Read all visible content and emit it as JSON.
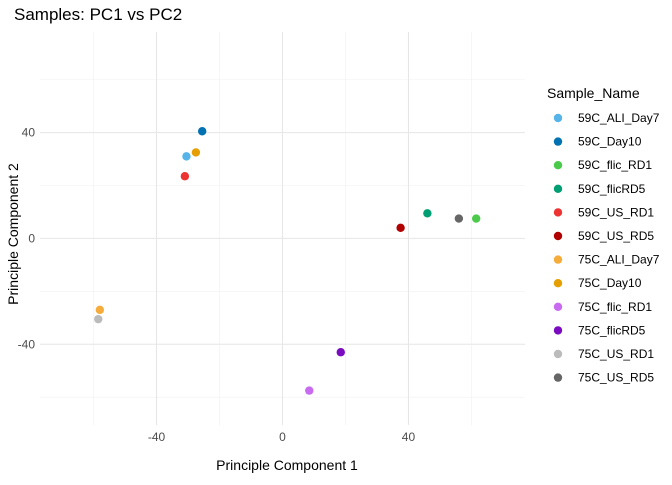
{
  "chart_data": {
    "type": "scatter",
    "title": "Samples: PC1 vs PC2",
    "xlabel": "Principle Component 1",
    "ylabel": "Principle Component 2",
    "xlim": [
      -77,
      77
    ],
    "ylim": [
      -70.5,
      78
    ],
    "x_ticks": [
      -40,
      0,
      40
    ],
    "y_ticks": [
      -40,
      0,
      40
    ],
    "grid": true,
    "legend": {
      "title": "Sample_Name",
      "placement": "right"
    },
    "series": [
      {
        "name": "59C_ALI_Day7",
        "color": "#56B4E9",
        "x": [
          -30.5
        ],
        "y": [
          31
        ]
      },
      {
        "name": "59C_Day10",
        "color": "#0072B2",
        "x": [
          -25.5
        ],
        "y": [
          40.5
        ]
      },
      {
        "name": "59C_flic_RD1",
        "color": "#4BC94B",
        "x": [
          61.5
        ],
        "y": [
          7.5
        ]
      },
      {
        "name": "59C_flicRD5",
        "color": "#009E73",
        "x": [
          46
        ],
        "y": [
          9.5
        ]
      },
      {
        "name": "59C_US_RD1",
        "color": "#EE3333",
        "x": [
          -31
        ],
        "y": [
          23.5
        ]
      },
      {
        "name": "59C_US_RD5",
        "color": "#B00000",
        "x": [
          37.5
        ],
        "y": [
          4
        ]
      },
      {
        "name": "75C_ALI_Day7",
        "color": "#F5AC3A",
        "x": [
          -58
        ],
        "y": [
          -27
        ]
      },
      {
        "name": "75C_Day10",
        "color": "#E69F00",
        "x": [
          -27.5
        ],
        "y": [
          32.5
        ]
      },
      {
        "name": "75C_flic_RD1",
        "color": "#C86BF0",
        "x": [
          8.5
        ],
        "y": [
          -57.5
        ]
      },
      {
        "name": "75C_flicRD5",
        "color": "#7A0BC0",
        "x": [
          18.5
        ],
        "y": [
          -43
        ]
      },
      {
        "name": "75C_US_RD1",
        "color": "#BBBBBB",
        "x": [
          -58.5
        ],
        "y": [
          -30.5
        ]
      },
      {
        "name": "75C_US_RD5",
        "color": "#666666",
        "x": [
          56
        ],
        "y": [
          7.5
        ]
      }
    ]
  }
}
